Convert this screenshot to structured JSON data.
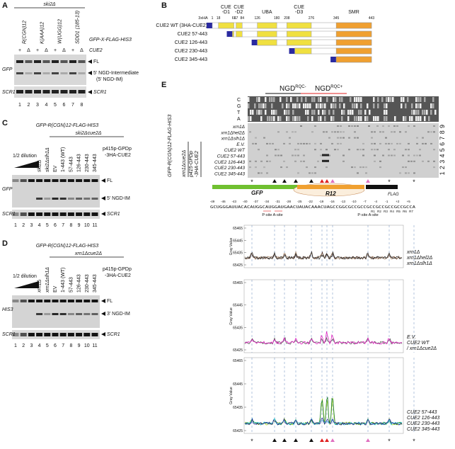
{
  "panel_a": {
    "label": "A",
    "strain": "ski2Δ",
    "constructs": [
      "R(CGN)12",
      "K(AAA)12",
      "W(UGG)12",
      "SDD1 (185-13)"
    ],
    "reporter": "GFP-X-FLAG-HIS3",
    "cue2_states": [
      "+",
      "Δ",
      "+",
      "Δ",
      "+",
      "Δ",
      "+",
      "Δ"
    ],
    "cue2_label": "CUE2",
    "probes": [
      "GFP",
      "SCR1"
    ],
    "bands": [
      "FL",
      "5' NGD-Intermediate",
      "(5' NGD-IM)",
      "SCR1"
    ],
    "lanes": [
      "1",
      "2",
      "3",
      "4",
      "5",
      "6",
      "7",
      "8"
    ]
  },
  "panel_b": {
    "label": "B",
    "tag": "3xHA",
    "domains": [
      "CUE -D1",
      "CUE -D2",
      "UBA",
      "CUE -D3",
      "SMR"
    ],
    "positions": [
      "1",
      "18",
      "61",
      "67",
      "84",
      "126",
      "180",
      "208",
      "276",
      "345",
      "443"
    ],
    "constructs": [
      {
        "name": "CUE2 WT (3HA-CUE2)",
        "color": "#e020c0"
      },
      {
        "name": "CUE2 57-443",
        "color": "#a8d820"
      },
      {
        "name": "CUE2 126-443",
        "color": "#1a7a30"
      },
      {
        "name": "CUE2 230-443",
        "color": "#30c0e0"
      },
      {
        "name": "CUE2 345-443",
        "color": "#2a2a90"
      }
    ]
  },
  "panel_c": {
    "label": "C",
    "reporter": "GFP-R(CGN)12-FLAG-HIS3",
    "strain": "ski2Δcue2Δ",
    "dilution": "1/2 dilution",
    "lane_labels": [
      "ski2Δ",
      "ski2Δslh1Δ",
      "EV",
      "1-443 (WT)",
      "57-443",
      "126-443",
      "230-443",
      "345-443"
    ],
    "plasmid": [
      "p415p-GPDp",
      "-3HA-CUE2"
    ],
    "probes": [
      "GFP",
      "SCR1"
    ],
    "bands": [
      "FL",
      "5' NGD-IM",
      "SCR1"
    ],
    "lanes": [
      "1",
      "2",
      "3",
      "4",
      "5",
      "6",
      "7",
      "8",
      "9",
      "10",
      "11"
    ]
  },
  "panel_d": {
    "label": "D",
    "reporter": "GFP-R(CGN)12-FLAG-HIS3",
    "strain": "xrn1Δcue2Δ",
    "dilution": "1/2 dilution",
    "lane_labels": [
      "xrn1Δ",
      "xrn1Δslh1Δ",
      "EV",
      "1-443 (WT)",
      "57-443",
      "126-443",
      "230-443",
      "345-443"
    ],
    "plasmid": [
      "p415p-GPDp",
      "-3HA-CUE2"
    ],
    "probes": [
      "HIS3",
      "SCR1"
    ],
    "bands": [
      "FL",
      "3' NGD-IM",
      "SCR1"
    ],
    "lanes": [
      "1",
      "2",
      "3",
      "4",
      "5",
      "6",
      "7",
      "8",
      "9",
      "10",
      "11"
    ]
  },
  "panel_e": {
    "label": "E",
    "header": [
      {
        "text": "NGD",
        "sup": "RQC-",
        "color": "#111111"
      },
      {
        "text": "NGD",
        "sup": "RQC+",
        "color": "#e02020"
      }
    ],
    "side_label": "GFP-R(CGN)12-FLAG-HIS3",
    "group1": "xrn1Δcue2Δ",
    "group2": [
      "p415-GPDp",
      "-3HA-CUE2"
    ],
    "ladder": "CGTA",
    "samples": [
      {
        "name": "xrn1Δ",
        "lane": "9",
        "color": "#333333"
      },
      {
        "name": "xrn1Δhel2Δ",
        "lane": "8",
        "color": "#9a7a60"
      },
      {
        "name": "xrn1Δslh1Δ",
        "lane": "7",
        "color": "#333333"
      },
      {
        "name": "E.V.",
        "lane": "6",
        "color": "#333333"
      },
      {
        "name": "CUE2 WT",
        "lane": "5",
        "color": "#e020c0"
      },
      {
        "name": "CUE2 57-443",
        "lane": "4",
        "color": "#a8d820"
      },
      {
        "name": "CUE2 126-443",
        "lane": "3",
        "color": "#1a7a30"
      },
      {
        "name": "CUE2 230-443",
        "lane": "2",
        "color": "#30c0e0"
      },
      {
        "name": "CUE2 345-443",
        "lane": "1",
        "color": "#2a2a90"
      }
    ],
    "markers": [
      "GFP",
      "R12",
      "FLAG"
    ],
    "positions": [
      "-49",
      "-46",
      "-43",
      "-40",
      "-37",
      "-34",
      "-31",
      "-28",
      "-25",
      "-22",
      "-19",
      "-16",
      "-13",
      "-10",
      "-7",
      "-4",
      "-1",
      "+2",
      "+5"
    ],
    "sequence": "GCUGGGAUUACACAUGGCAUGGAUGAACUAUACAAACUAGCCGGCGCCGCCGCCGCCGCCGCCGCCA",
    "site_labels": [
      "P-site A-site",
      "P-site A-site"
    ],
    "repeats": [
      "R1",
      "R2",
      "R3",
      "R4",
      "R5",
      "R6",
      "R7"
    ],
    "plots": [
      {
        "ylabel": "Gray Value",
        "yticks": [
          "65465",
          "65445",
          "65435",
          "65425"
        ],
        "legend": [
          {
            "name": "xrn1Δ",
            "color": "#4a2a20"
          },
          {
            "name": "xrn1Δhel2Δ",
            "color": "#a88a70"
          },
          {
            "name": "xrn1Δslh1Δ",
            "color": "#333333"
          }
        ]
      },
      {
        "ylabel": "Gray Value",
        "yticks": [
          "65465",
          "65445",
          "65435",
          "65425"
        ],
        "legend": [
          {
            "name": "E.V.",
            "color": "#555555"
          },
          {
            "name": "CUE2 WT",
            "color": "#e020c0"
          },
          {
            "name": "/ xrn1Δcue2Δ",
            "color": "#333333"
          }
        ]
      },
      {
        "ylabel": "Gray Value",
        "yticks": [
          "65465",
          "65445",
          "65435",
          "65425"
        ],
        "legend": [
          {
            "name": "CUE2 57-443",
            "color": "#a8d820"
          },
          {
            "name": "CUE2 126-443",
            "color": "#1a7a30"
          },
          {
            "name": "CUE2 230-443",
            "color": "#30c0e0"
          },
          {
            "name": "CUE2 345-443",
            "color": "#2a2a90"
          }
        ]
      }
    ]
  }
}
